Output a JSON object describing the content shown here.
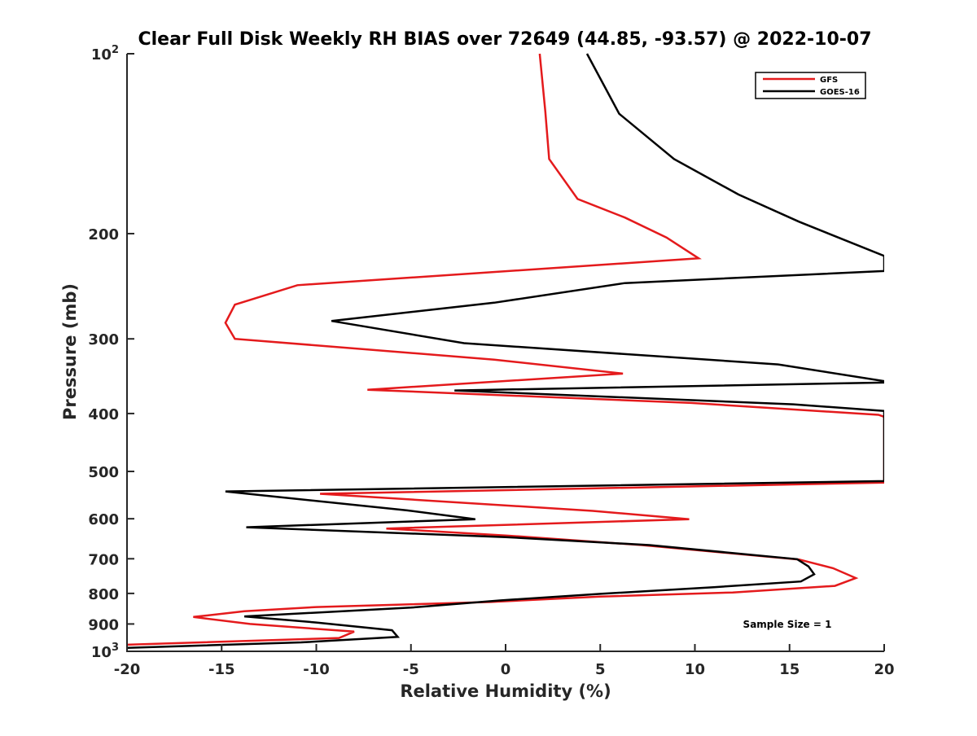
{
  "chart_data": {
    "type": "line",
    "title": "Clear Full Disk Weekly RH BIAS over 72649 (44.85, -93.57) @ 2022-10-07",
    "xlabel": "Relative Humidity (%)",
    "ylabel": "Pressure (mb)",
    "xlim": [
      -20,
      20
    ],
    "ylim": [
      100,
      1000
    ],
    "y_scale": "log",
    "y_reversed": true,
    "grid": false,
    "legend_position": "top-right",
    "annotation": "Sample Size = 1",
    "x_ticks": [
      "-20",
      "-15",
      "-10",
      "-5",
      "0",
      "5",
      "10",
      "15",
      "20"
    ],
    "y_ticks": [
      {
        "value": 100,
        "base": "10",
        "exp": "2"
      },
      {
        "value": 200,
        "label": "200"
      },
      {
        "value": 300,
        "label": "300"
      },
      {
        "value": 400,
        "label": "400"
      },
      {
        "value": 500,
        "label": "500"
      },
      {
        "value": 600,
        "label": "600"
      },
      {
        "value": 700,
        "label": "700"
      },
      {
        "value": 800,
        "label": "800"
      },
      {
        "value": 900,
        "label": "900"
      },
      {
        "value": 1000,
        "base": "10",
        "exp": "3"
      }
    ],
    "series": [
      {
        "name": "GFS",
        "color": "#e41a1c",
        "points": [
          [
            1.8,
            100
          ],
          [
            2.1,
            125
          ],
          [
            2.3,
            150
          ],
          [
            3.8,
            175
          ],
          [
            6.3,
            188
          ],
          [
            8.5,
            203
          ],
          [
            10.2,
            220
          ],
          [
            -11.0,
            244
          ],
          [
            -14.3,
            263
          ],
          [
            -14.8,
            282
          ],
          [
            -14.3,
            300
          ],
          [
            -0.6,
            325
          ],
          [
            6.2,
            343
          ],
          [
            -7.3,
            365
          ],
          [
            9.8,
            384
          ],
          [
            19.7,
            402
          ],
          [
            20.0,
            405
          ],
          [
            20.0,
            522
          ],
          [
            -9.8,
            545
          ],
          [
            4.6,
            582
          ],
          [
            9.7,
            601
          ],
          [
            -6.3,
            623
          ],
          [
            0.0,
            640
          ],
          [
            7.2,
            664
          ],
          [
            15.5,
            702
          ],
          [
            17.3,
            726
          ],
          [
            18.5,
            754
          ],
          [
            17.4,
            777
          ],
          [
            12.0,
            797
          ],
          [
            5.0,
            810
          ],
          [
            -0.8,
            827
          ],
          [
            -10.0,
            843
          ],
          [
            -13.8,
            857
          ],
          [
            -16.5,
            876
          ],
          [
            -13.5,
            900
          ],
          [
            -8.0,
            927
          ],
          [
            -8.8,
            950
          ],
          [
            -20.0,
            975
          ]
        ]
      },
      {
        "name": "GOES-16",
        "color": "#000000",
        "points": [
          [
            4.3,
            100
          ],
          [
            6.0,
            126
          ],
          [
            8.9,
            150
          ],
          [
            12.3,
            172
          ],
          [
            15.5,
            191
          ],
          [
            20.0,
            218
          ],
          [
            20.0,
            231
          ],
          [
            6.3,
            242
          ],
          [
            -0.6,
            261
          ],
          [
            -9.2,
            280
          ],
          [
            -2.2,
            305
          ],
          [
            14.4,
            331
          ],
          [
            20.0,
            353
          ],
          [
            20.0,
            355
          ],
          [
            -2.7,
            366
          ],
          [
            15.2,
            386
          ],
          [
            20.0,
            396
          ],
          [
            20.0,
            519
          ],
          [
            -14.8,
            540
          ],
          [
            -5.2,
            581
          ],
          [
            -1.6,
            601
          ],
          [
            -13.7,
            620
          ],
          [
            0.0,
            644
          ],
          [
            7.6,
            664
          ],
          [
            15.4,
            701
          ],
          [
            16.0,
            721
          ],
          [
            16.3,
            743
          ],
          [
            15.6,
            764
          ],
          [
            11.0,
            781
          ],
          [
            5.1,
            801
          ],
          [
            -0.3,
            822
          ],
          [
            -5.0,
            845
          ],
          [
            -13.8,
            874
          ],
          [
            -10.0,
            895
          ],
          [
            -6.0,
            922
          ],
          [
            -5.7,
            946
          ],
          [
            -10.8,
            966
          ],
          [
            -20.0,
            987
          ]
        ]
      }
    ]
  }
}
